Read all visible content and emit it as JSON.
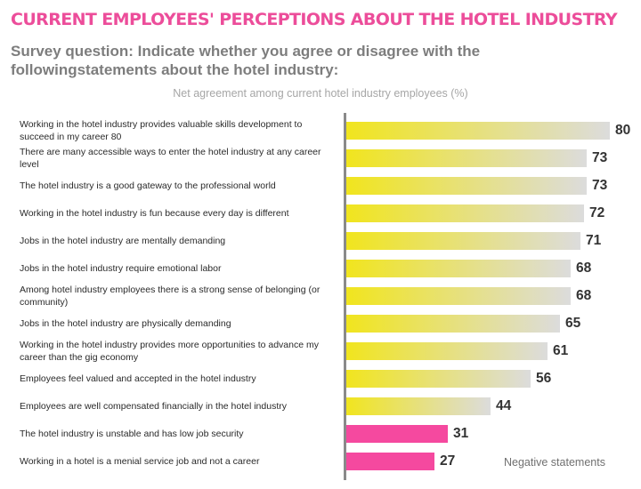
{
  "chart_data": {
    "type": "bar",
    "orientation": "horizontal",
    "title": "CURRENT EMPLOYEES' PERCEPTIONS ABOUT THE HOTEL INDUSTRY",
    "subtitle": "Survey question: Indicate whether you agree or disagree with the followingstatements about the hotel industry:",
    "xlabel": "Net agreement among current hotel industry employees (%)",
    "categories": [
      "Working in the hotel industry provides valuable skills development to succeed in my career 80",
      "There are many accessible ways to enter the hotel industry at any career level",
      "The hotel industry is a good gateway to the professional world",
      "Working in the hotel industry is fun because every day is different",
      "Jobs in the hotel industry are mentally demanding",
      "Jobs in the hotel industry require emotional labor",
      "Among hotel industry employees there is a strong sense of belonging (or community)",
      "Jobs in the hotel industry are physically demanding",
      "Working in the hotel industry provides more opportunities to advance my career than the gig economy",
      "Employees feel valued and accepted in the hotel industry",
      "Employees are well compensated financially in the hotel industry",
      "The hotel industry is unstable and has low job security",
      "Working in a hotel is a menial service job and not a career"
    ],
    "values": [
      80,
      73,
      73,
      72,
      71,
      68,
      68,
      65,
      61,
      56,
      44,
      31,
      27
    ],
    "negative": [
      false,
      false,
      false,
      false,
      false,
      false,
      false,
      false,
      false,
      false,
      false,
      true,
      true
    ],
    "xlim": [
      0,
      100
    ],
    "grid": false,
    "annotation": "Negative statements",
    "colors": {
      "positive_start": "#f1e51c",
      "positive_end": "#dcdcdc",
      "negative": "#f5499f",
      "title": "#ec4d9a"
    }
  }
}
